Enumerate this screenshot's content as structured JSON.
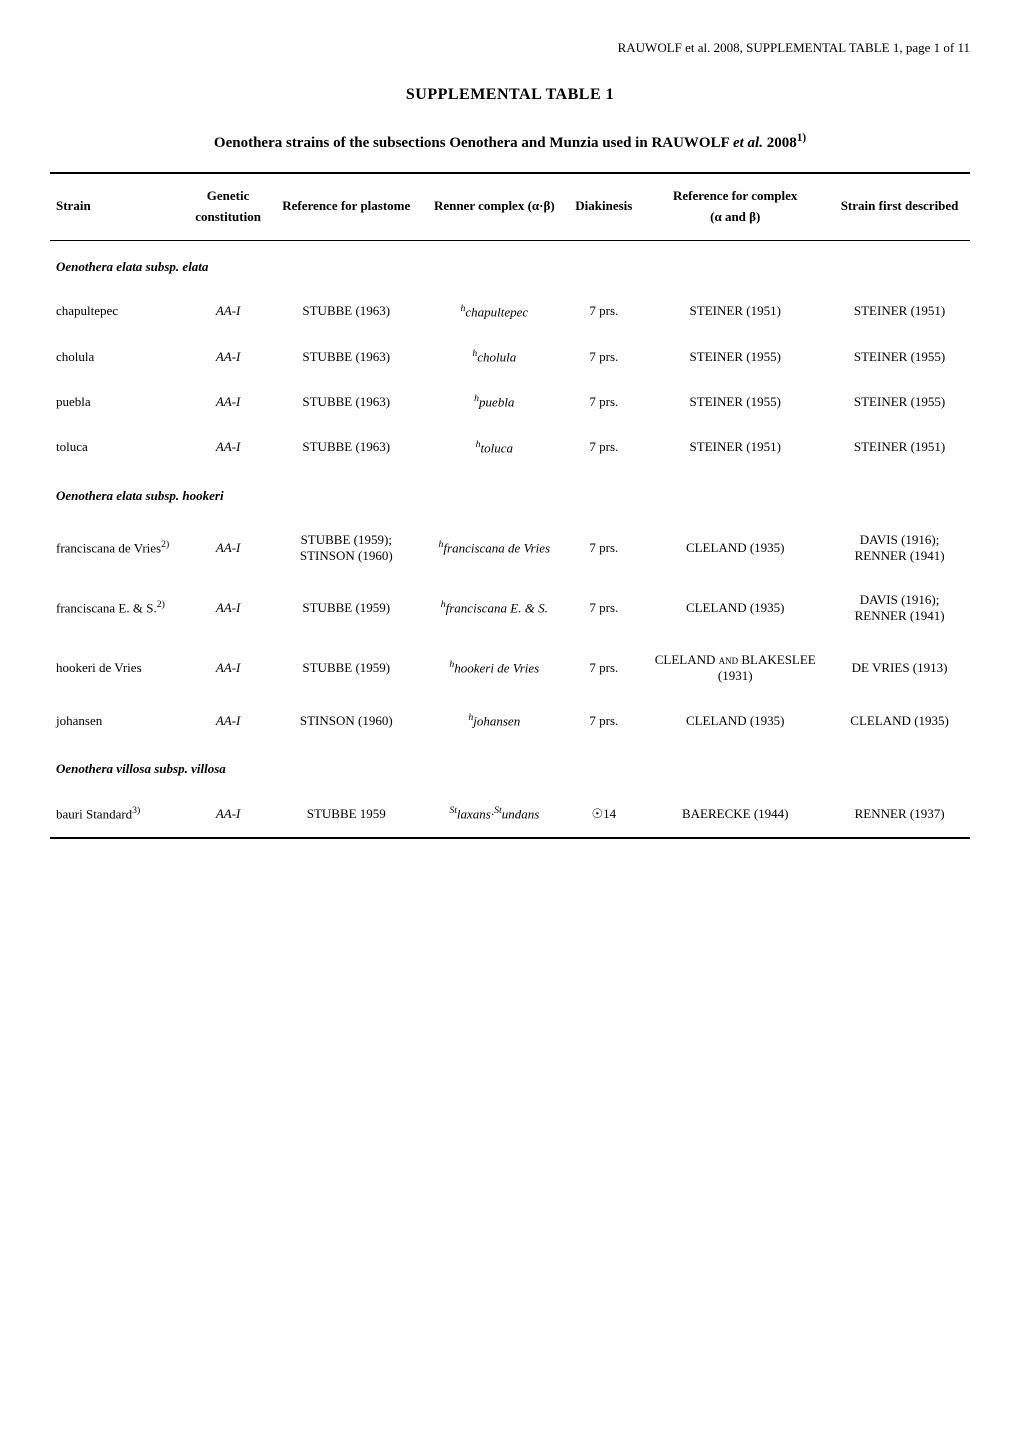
{
  "header": {
    "author_year": "RAUWOLF et al. 2008, SUPPLEMENTAL TABLE 1, ",
    "page_label": "page 1 of 11"
  },
  "title": "SUPPLEMENTAL TABLE 1",
  "subtitle_prefix": "Oenothera strains of the subsections Oenothera and Munzia used in ",
  "subtitle_author": "RAUWOLF ",
  "subtitle_italic": "et al. ",
  "subtitle_year": "2008",
  "subtitle_sup": "1)",
  "columns": {
    "strain": "Strain",
    "genetic_line1": "Genetic",
    "genetic_line2": "constitution",
    "ref_plastome": "Reference for plastome",
    "renner": "Renner complex (α·β)",
    "diakinesis": "Diakinesis",
    "ref_complex_line1": "Reference for complex",
    "ref_complex_line2": "(α and β)",
    "strain_first": "Strain first described"
  },
  "sections": [
    {
      "heading_italic": "Oenothera elata ",
      "heading_rest": "subsp. ",
      "heading_italic2": "elata",
      "rows": [
        {
          "strain": "chapultepec",
          "genetic": "AA-I",
          "ref_plastome": "STUBBE (1963)",
          "renner_sup": "h",
          "renner": "chapultepec",
          "diakinesis": "7 prs.",
          "ref_complex": "STEINER (1951)",
          "strain_first": "STEINER (1951)"
        },
        {
          "strain": "cholula",
          "genetic": "AA-I",
          "ref_plastome": "STUBBE (1963)",
          "renner_sup": "h",
          "renner": "cholula",
          "diakinesis": "7 prs.",
          "ref_complex": "STEINER (1955)",
          "strain_first": "STEINER (1955)"
        },
        {
          "strain": "puebla",
          "genetic": "AA-I",
          "ref_plastome": "STUBBE (1963)",
          "renner_sup": "h",
          "renner": "puebla",
          "diakinesis": "7 prs.",
          "ref_complex": "STEINER (1955)",
          "strain_first": "STEINER (1955)"
        },
        {
          "strain": "toluca",
          "genetic": "AA-I",
          "ref_plastome": "STUBBE (1963)",
          "renner_sup": "h",
          "renner": "toluca",
          "diakinesis": "7 prs.",
          "ref_complex": "STEINER (1951)",
          "strain_first": "STEINER (1951)"
        }
      ]
    },
    {
      "heading_italic": "Oenothera elata ",
      "heading_rest": "subsp. ",
      "heading_italic2": "hookeri",
      "rows": [
        {
          "strain": "franciscana de Vries",
          "strain_sup": "2)",
          "genetic": "AA-I",
          "ref_plastome_line1": "STUBBE (1959);",
          "ref_plastome_line2": "STINSON (1960)",
          "renner_sup": "h",
          "renner": "franciscana de Vries",
          "diakinesis": "7 prs.",
          "ref_complex": "CLELAND (1935)",
          "strain_first_line1": "DAVIS (1916);",
          "strain_first_line2": "RENNER (1941)"
        },
        {
          "strain": "franciscana E. & S.",
          "strain_sup": "2)",
          "genetic": "AA-I",
          "ref_plastome": "STUBBE (1959)",
          "renner_sup": "h",
          "renner": "franciscana E. & S.",
          "diakinesis": "7 prs.",
          "ref_complex": "CLELAND (1935)",
          "strain_first_line1": "DAVIS (1916);",
          "strain_first_line2": "RENNER (1941)"
        },
        {
          "strain": "hookeri de Vries",
          "genetic": "AA-I",
          "ref_plastome": "STUBBE (1959)",
          "renner_sup": "h",
          "renner": "hookeri de Vries",
          "diakinesis": "7 prs.",
          "ref_complex_line1": "CLELAND and BLAKESLEE",
          "ref_complex_line2": "(1931)",
          "strain_first": "DE VRIES (1913)"
        },
        {
          "strain": "johansen",
          "genetic": "AA-I",
          "ref_plastome": "STINSON (1960)",
          "renner_sup": "h",
          "renner": "johansen",
          "diakinesis": "7 prs.",
          "ref_complex": "CLELAND (1935)",
          "strain_first": "CLELAND (1935)"
        }
      ]
    },
    {
      "heading_italic": "Oenothera villosa ",
      "heading_rest": "subsp. ",
      "heading_italic2": "villosa",
      "rows": [
        {
          "strain": "bauri Standard",
          "strain_sup": "3)",
          "genetic": "AA-I",
          "ref_plastome": "STUBBE 1959",
          "renner_sup1": "St",
          "renner1": "laxans·",
          "renner_sup2": "St",
          "renner2": "undans",
          "diakinesis": "☉14",
          "ref_complex": "BAERECKE (1944)",
          "strain_first": "RENNER (1937)"
        }
      ]
    }
  ]
}
